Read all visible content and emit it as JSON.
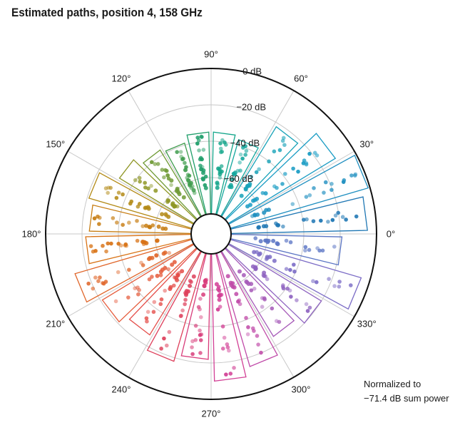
{
  "chart_data": {
    "type": "polar",
    "title": "Estimated paths, position 4, 158 GHz",
    "radial_axis": {
      "unit": "dB",
      "ticks": [
        0,
        -20,
        -40,
        -60
      ],
      "tick_labels": [
        "0 dB",
        "−20 dB",
        "−40 dB",
        "−60 dB"
      ],
      "range": [
        -80,
        0
      ]
    },
    "angular_axis": {
      "unit": "degrees",
      "ticks": [
        0,
        30,
        60,
        90,
        120,
        150,
        180,
        210,
        240,
        270,
        300,
        330
      ],
      "tick_labels": [
        "0°",
        "30°",
        "60°",
        "90°",
        "120°",
        "150°",
        "180°",
        "210°",
        "240°",
        "270°",
        "300°",
        "330°"
      ]
    },
    "grid": true,
    "annotation": [
      "Normalized to",
      "−71.4 dB sum power"
    ],
    "sectors": [
      {
        "angle": 7.5,
        "peak_db": -5,
        "color": "#1f77b4"
      },
      {
        "angle": 22.5,
        "peak_db": -1,
        "color": "#1f8fc0"
      },
      {
        "angle": 37.5,
        "peak_db": -11,
        "color": "#1a9cc4"
      },
      {
        "angle": 52.5,
        "peak_db": -22,
        "color": "#17a2b8"
      },
      {
        "angle": 67.5,
        "peak_db": -37,
        "color": "#14a79e"
      },
      {
        "angle": 82.5,
        "peak_db": -35,
        "color": "#12a58a"
      },
      {
        "angle": 97.5,
        "peak_db": -35,
        "color": "#1f9e6a"
      },
      {
        "angle": 112.5,
        "peak_db": -39,
        "color": "#3f9c4d"
      },
      {
        "angle": 127.5,
        "peak_db": -37,
        "color": "#6f9a35"
      },
      {
        "angle": 142.5,
        "peak_db": -32,
        "color": "#8e9624"
      },
      {
        "angle": 157.5,
        "peak_db": -21,
        "color": "#b38a16"
      },
      {
        "angle": 172.5,
        "peak_db": -24,
        "color": "#c77d12"
      },
      {
        "angle": 187.5,
        "peak_db": -22,
        "color": "#d87215"
      },
      {
        "angle": 202.5,
        "peak_db": -13,
        "color": "#e0662a"
      },
      {
        "angle": 217.5,
        "peak_db": -21,
        "color": "#e55a3a"
      },
      {
        "angle": 232.5,
        "peak_db": -26,
        "color": "#e44c48"
      },
      {
        "angle": 247.5,
        "peak_db": -18,
        "color": "#de3f5b"
      },
      {
        "angle": 262.5,
        "peak_db": -22,
        "color": "#d83c7a"
      },
      {
        "angle": 277.5,
        "peak_db": -10,
        "color": "#d23f95"
      },
      {
        "angle": 292.5,
        "peak_db": -15,
        "color": "#c04aa8"
      },
      {
        "angle": 307.5,
        "peak_db": -25,
        "color": "#a65ab8"
      },
      {
        "angle": 322.5,
        "peak_db": -20,
        "color": "#8e63c0"
      },
      {
        "angle": 337.5,
        "peak_db": -5,
        "color": "#7b6cc6"
      },
      {
        "angle": 352.5,
        "peak_db": -19,
        "color": "#5a74c4"
      }
    ]
  }
}
